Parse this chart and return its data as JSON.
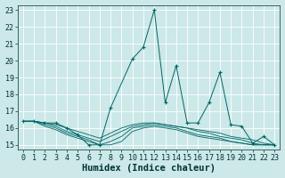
{
  "xlabel": "Humidex (Indice chaleur)",
  "bg_color": "#cce8e8",
  "grid_color": "#ffffff",
  "line_color": "#006666",
  "ylim": [
    14.7,
    23.3
  ],
  "xlim": [
    -0.5,
    23.5
  ],
  "yticks": [
    15,
    16,
    17,
    18,
    19,
    20,
    21,
    22,
    23
  ],
  "xticks": [
    0,
    1,
    2,
    3,
    4,
    5,
    6,
    7,
    8,
    9,
    10,
    11,
    12,
    13,
    14,
    15,
    16,
    17,
    18,
    19,
    20,
    21,
    22,
    23
  ],
  "main_line": {
    "x": [
      0,
      1,
      2,
      3,
      4,
      5,
      6,
      7,
      8,
      10,
      11,
      12,
      13,
      14,
      15,
      16,
      17,
      18,
      19,
      20,
      21,
      22,
      23
    ],
    "y": [
      16.4,
      16.4,
      16.3,
      16.3,
      16.0,
      15.6,
      15.0,
      15.0,
      17.2,
      20.1,
      20.8,
      23.0,
      17.5,
      19.7,
      16.3,
      16.3,
      17.5,
      19.3,
      16.2,
      16.1,
      15.1,
      15.5,
      15.0
    ]
  },
  "flat_lines": [
    {
      "x": [
        0,
        1,
        2,
        3,
        4,
        5,
        6,
        7,
        8,
        9,
        10,
        11,
        12,
        13,
        14,
        15,
        16,
        17,
        18,
        19,
        20,
        21,
        22,
        23
      ],
      "y": [
        16.4,
        16.4,
        16.1,
        15.9,
        15.6,
        15.4,
        15.2,
        15.0,
        15.0,
        15.2,
        15.8,
        16.0,
        16.1,
        16.0,
        15.9,
        15.7,
        15.5,
        15.4,
        15.3,
        15.2,
        15.1,
        15.0,
        15.0,
        15.0
      ]
    },
    {
      "x": [
        0,
        1,
        2,
        3,
        4,
        5,
        6,
        7,
        8,
        9,
        10,
        11,
        12,
        13,
        14,
        15,
        16,
        17,
        18,
        19,
        20,
        21,
        22,
        23
      ],
      "y": [
        16.4,
        16.4,
        16.2,
        16.0,
        15.7,
        15.5,
        15.3,
        15.0,
        15.2,
        15.5,
        16.0,
        16.1,
        16.2,
        16.1,
        16.0,
        15.8,
        15.6,
        15.5,
        15.4,
        15.2,
        15.1,
        15.0,
        15.0,
        15.0
      ]
    },
    {
      "x": [
        0,
        1,
        2,
        3,
        4,
        5,
        6,
        7,
        8,
        9,
        10,
        11,
        12,
        13,
        14,
        15,
        16,
        17,
        18,
        19,
        20,
        21,
        22,
        23
      ],
      "y": [
        16.4,
        16.4,
        16.3,
        16.1,
        15.8,
        15.6,
        15.4,
        15.2,
        15.5,
        15.8,
        16.1,
        16.2,
        16.3,
        16.2,
        16.1,
        16.0,
        15.8,
        15.7,
        15.5,
        15.4,
        15.3,
        15.1,
        15.0,
        15.0
      ]
    },
    {
      "x": [
        0,
        1,
        2,
        3,
        4,
        5,
        6,
        7,
        8,
        9,
        10,
        11,
        12,
        13,
        14,
        15,
        16,
        17,
        18,
        19,
        20,
        21,
        22,
        23
      ],
      "y": [
        16.4,
        16.4,
        16.3,
        16.2,
        16.0,
        15.8,
        15.6,
        15.4,
        15.7,
        16.0,
        16.2,
        16.3,
        16.3,
        16.2,
        16.1,
        16.0,
        15.9,
        15.8,
        15.7,
        15.5,
        15.4,
        15.3,
        15.1,
        15.0
      ]
    }
  ],
  "font_color": "#003333",
  "tick_fontsize": 6,
  "label_fontsize": 7.5
}
